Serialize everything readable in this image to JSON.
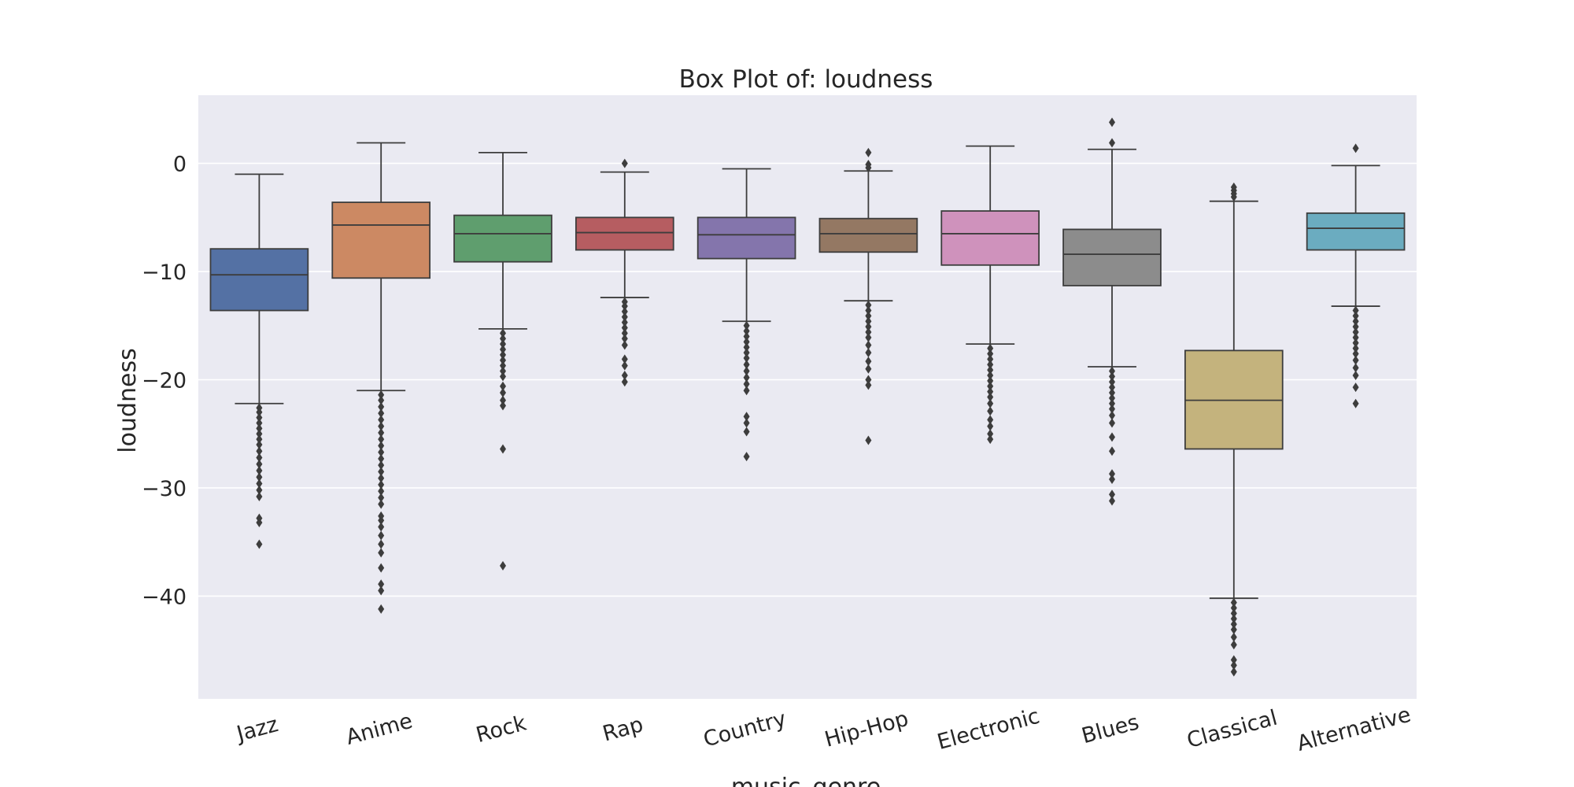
{
  "chart_data": {
    "type": "box",
    "title": "Box Plot of: loudness",
    "xlabel": "music_genre",
    "ylabel": "loudness",
    "ylim": [
      -49.5,
      6.3
    ],
    "yticks": [
      0,
      -10,
      -20,
      -30,
      -40
    ],
    "ytick_labels": [
      "0",
      "−10",
      "−20",
      "−30",
      "−40"
    ],
    "grid": true,
    "categories": [
      "Jazz",
      "Anime",
      "Rock",
      "Rap",
      "Country",
      "Hip-Hop",
      "Electronic",
      "Blues",
      "Classical",
      "Alternative"
    ],
    "series": [
      {
        "category": "Jazz",
        "color": "#5471a4",
        "whisker_low": -22.2,
        "q1": -13.6,
        "median": -10.3,
        "q3": -7.9,
        "whisker_high": -1.0,
        "outliers": [
          -22.6,
          -23.0,
          -23.5,
          -24.0,
          -24.5,
          -25.0,
          -25.5,
          -26.0,
          -26.6,
          -27.2,
          -27.8,
          -28.4,
          -29.0,
          -29.6,
          -30.2,
          -30.8,
          -32.8,
          -33.2,
          -35.2
        ]
      },
      {
        "category": "Anime",
        "color": "#cc8963",
        "whisker_low": -21.0,
        "q1": -10.6,
        "median": -5.7,
        "q3": -3.6,
        "whisker_high": 1.9,
        "outliers": [
          -21.4,
          -21.9,
          -22.5,
          -23.1,
          -23.7,
          -24.3,
          -24.9,
          -25.5,
          -26.1,
          -26.7,
          -27.3,
          -27.9,
          -28.5,
          -29.1,
          -29.7,
          -30.3,
          -30.9,
          -31.5,
          -32.6,
          -33.0,
          -33.6,
          -34.4,
          -35.2,
          -36.0,
          -37.4,
          -38.9,
          -39.5,
          -41.2
        ]
      },
      {
        "category": "Rock",
        "color": "#5f9e6e",
        "whisker_low": -15.3,
        "q1": -9.1,
        "median": -6.5,
        "q3": -4.8,
        "whisker_high": 1.0,
        "outliers": [
          -15.7,
          -16.2,
          -16.7,
          -17.2,
          -17.7,
          -18.2,
          -18.7,
          -19.2,
          -19.7,
          -20.6,
          -21.2,
          -21.9,
          -22.4,
          -26.4,
          -37.2
        ]
      },
      {
        "category": "Rap",
        "color": "#b65d61",
        "whisker_low": -12.4,
        "q1": -8.0,
        "median": -6.4,
        "q3": -5.0,
        "whisker_high": -0.8,
        "outliers": [
          0.0,
          -12.8,
          -13.2,
          -13.7,
          -14.2,
          -14.7,
          -15.2,
          -15.7,
          -16.2,
          -16.8,
          -18.1,
          -18.7,
          -19.6,
          -20.2
        ]
      },
      {
        "category": "Country",
        "color": "#8475ac",
        "whisker_low": -14.6,
        "q1": -8.8,
        "median": -6.6,
        "q3": -5.0,
        "whisker_high": -0.5,
        "outliers": [
          -15.0,
          -15.5,
          -16.0,
          -16.5,
          -17.0,
          -17.5,
          -18.0,
          -18.6,
          -19.2,
          -19.8,
          -20.4,
          -21.0,
          -23.4,
          -24.0,
          -24.8,
          -27.1
        ]
      },
      {
        "category": "Hip-Hop",
        "color": "#947863",
        "whisker_low": -12.7,
        "q1": -8.2,
        "median": -6.5,
        "q3": -5.1,
        "whisker_high": -0.7,
        "outliers": [
          1.0,
          -0.1,
          -0.4,
          -13.1,
          -13.6,
          -14.1,
          -14.6,
          -15.1,
          -15.6,
          -16.1,
          -16.8,
          -17.5,
          -18.3,
          -19.0,
          -20.0,
          -20.5,
          -25.6
        ]
      },
      {
        "category": "Electronic",
        "color": "#cf92bc",
        "whisker_low": -16.7,
        "q1": -9.4,
        "median": -6.5,
        "q3": -4.4,
        "whisker_high": 1.6,
        "outliers": [
          -17.1,
          -17.6,
          -18.1,
          -18.6,
          -19.1,
          -19.6,
          -20.1,
          -20.6,
          -21.1,
          -21.6,
          -22.2,
          -22.9,
          -23.7,
          -24.3,
          -25.0,
          -25.5
        ]
      },
      {
        "category": "Blues",
        "color": "#8c8c8c",
        "whisker_low": -18.8,
        "q1": -11.3,
        "median": -8.4,
        "q3": -6.1,
        "whisker_high": 1.3,
        "outliers": [
          3.8,
          1.9,
          -19.2,
          -19.7,
          -20.2,
          -20.7,
          -21.2,
          -21.7,
          -22.2,
          -22.7,
          -23.3,
          -24.0,
          -25.3,
          -26.6,
          -28.7,
          -29.2,
          -30.6,
          -31.2
        ]
      },
      {
        "category": "Classical",
        "color": "#c4b37d",
        "whisker_low": -40.2,
        "q1": -26.4,
        "median": -21.9,
        "q3": -17.3,
        "whisker_high": -3.5,
        "outliers": [
          -2.2,
          -2.5,
          -2.8,
          -3.1,
          -40.6,
          -41.1,
          -41.6,
          -42.1,
          -42.6,
          -43.1,
          -43.8,
          -44.5,
          -45.9,
          -46.4,
          -47.0
        ]
      },
      {
        "category": "Alternative",
        "color": "#6bacc0",
        "whisker_low": -13.2,
        "q1": -8.0,
        "median": -6.0,
        "q3": -4.6,
        "whisker_high": -0.2,
        "outliers": [
          1.4,
          -13.6,
          -14.1,
          -14.6,
          -15.1,
          -15.6,
          -16.1,
          -16.6,
          -17.1,
          -17.6,
          -18.2,
          -18.9,
          -19.6,
          -20.7,
          -22.2
        ]
      }
    ]
  }
}
